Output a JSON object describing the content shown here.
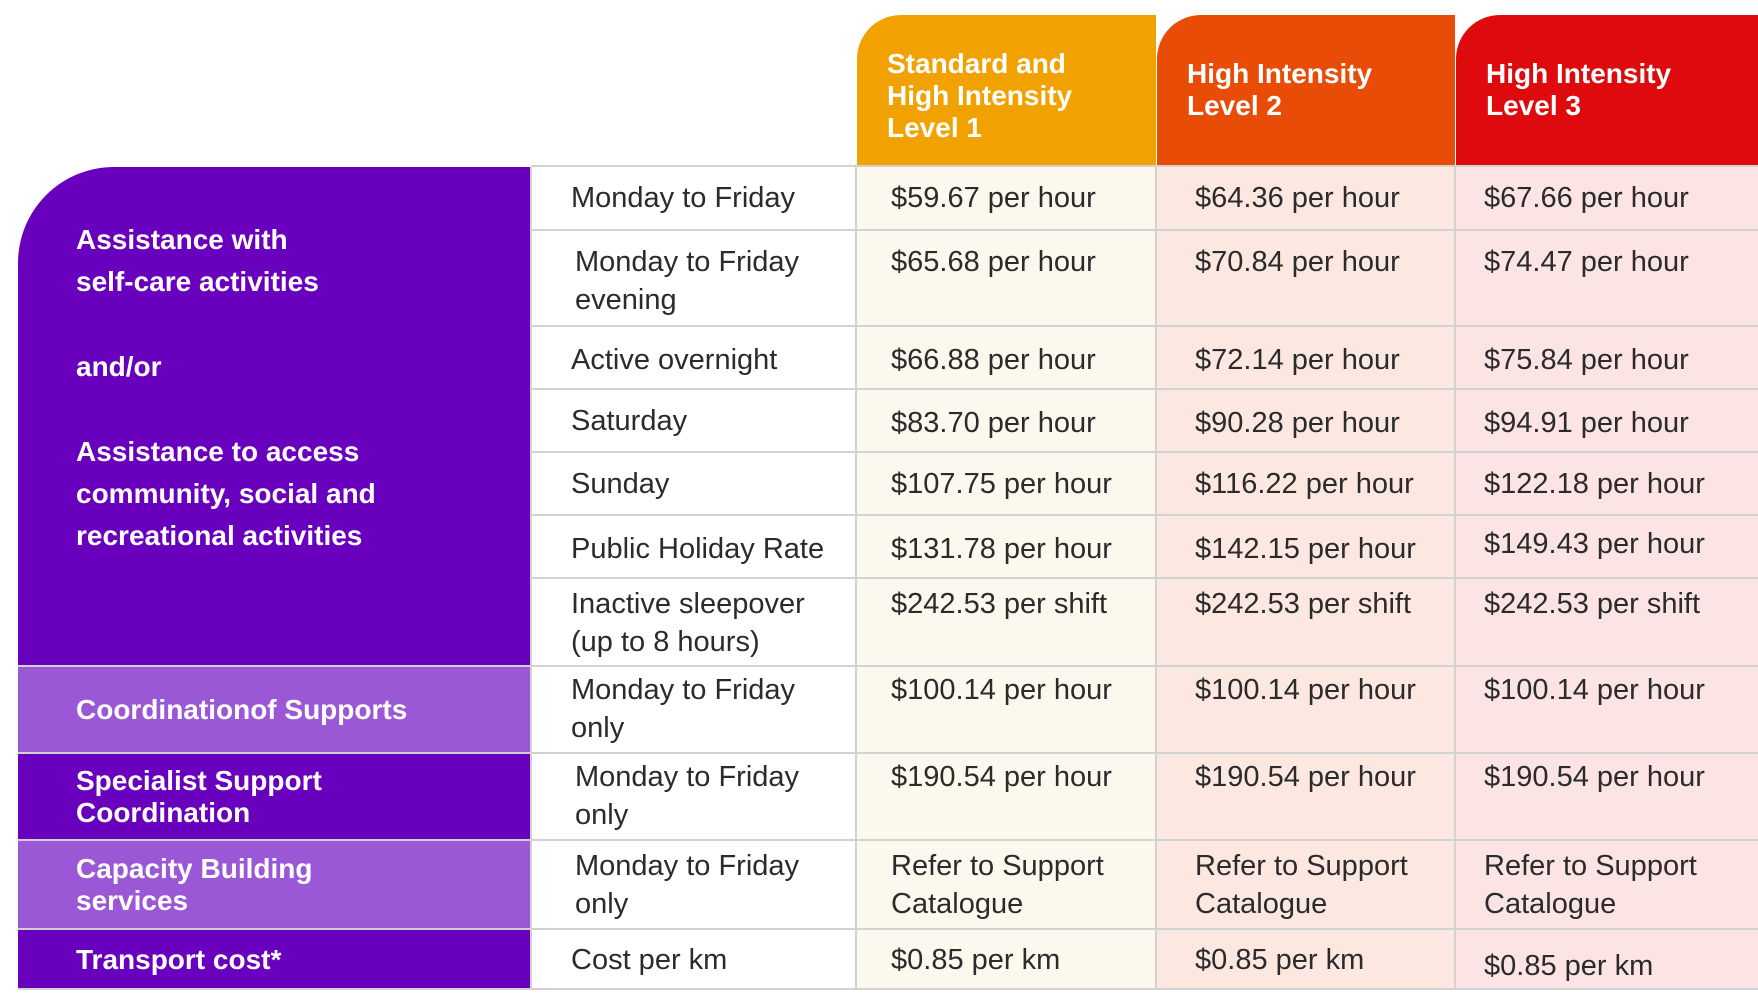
{
  "headers": [
    {
      "label": "Standard and\nHigh Intensity\nLevel 1",
      "color": "#f2a200"
    },
    {
      "label": "High Intensity\nLevel 2",
      "color": "#e84c06"
    },
    {
      "label": "High Intensity\nLevel 3",
      "color": "#df0a0d"
    }
  ],
  "categories": {
    "main": {
      "line1": "Assistance with",
      "line2": "self-care activities",
      "andor": "and/or",
      "line3": "Assistance to access",
      "line4": "community, social and",
      "line5": "recreational activities"
    },
    "coordination": "Coordinationof Supports",
    "specialist": "Specialist Support\nCoordination",
    "capacity": "Capacity Building\nservices",
    "transport": "Transport cost*"
  },
  "colors": {
    "category_dark": "#6800bd",
    "category_light": "#9a57d6",
    "level1_bg": "#fdf8ee",
    "level2_bg": "#fce8e0",
    "level3_bg": "#fbe4e3"
  },
  "rows": [
    {
      "time": "Monday to Friday",
      "l1": "$59.67 per hour",
      "l2": "$64.36 per hour",
      "l3": "$67.66 per hour"
    },
    {
      "time": "Monday to Friday\nevening",
      "l1": "$65.68 per hour",
      "l2": "$70.84 per hour",
      "l3": "$74.47 per hour"
    },
    {
      "time": "Active overnight",
      "l1": "$66.88 per hour",
      "l2": "$72.14 per hour",
      "l3": "$75.84 per hour"
    },
    {
      "time": "Saturday",
      "l1": "$83.70 per hour",
      "l2": "$90.28 per hour",
      "l3": "$94.91 per hour"
    },
    {
      "time": "Sunday",
      "l1": "$107.75 per hour",
      "l2": "$116.22 per hour",
      "l3": "$122.18 per hour"
    },
    {
      "time": "Public Holiday Rate",
      "l1": "$131.78 per hour",
      "l2": "$142.15 per hour",
      "l3": "$149.43 per hour"
    },
    {
      "time": "Inactive sleepover\n(up to 8 hours)",
      "l1": "$242.53 per shift",
      "l2": "$242.53 per shift",
      "l3": "$242.53 per shift"
    },
    {
      "time": "Monday to Friday\nonly",
      "l1": "$100.14 per hour",
      "l2": "$100.14 per hour",
      "l3": "$100.14 per hour"
    },
    {
      "time": "Monday to Friday\nonly",
      "l1": "$190.54 per hour",
      "l2": "$190.54 per hour",
      "l3": "$190.54 per hour"
    },
    {
      "time": "Monday to Friday\nonly",
      "l1": "Refer to Support\nCatalogue",
      "l2": "Refer to Support\nCatalogue",
      "l3": "Refer to Support\nCatalogue"
    },
    {
      "time": "Cost per km",
      "l1": "$0.85 per km",
      "l2": "$0.85 per km",
      "l3": "$0.85 per km"
    }
  ]
}
